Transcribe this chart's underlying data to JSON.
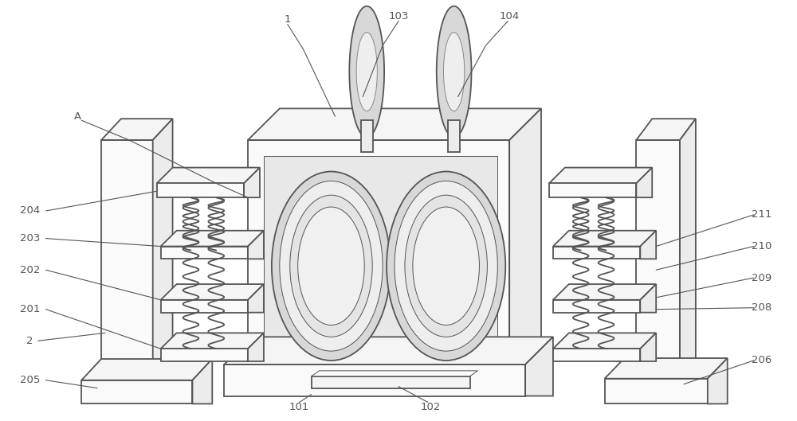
{
  "bg_color": "#ffffff",
  "line_color": "#555555",
  "line_color2": "#888888",
  "lw_main": 1.3,
  "lw_thin": 0.7,
  "fig_width": 10.0,
  "fig_height": 5.29,
  "face_light": "#f5f5f5",
  "face_mid": "#ececec",
  "face_dark": "#e0e0e0",
  "face_white": "#fafafa"
}
